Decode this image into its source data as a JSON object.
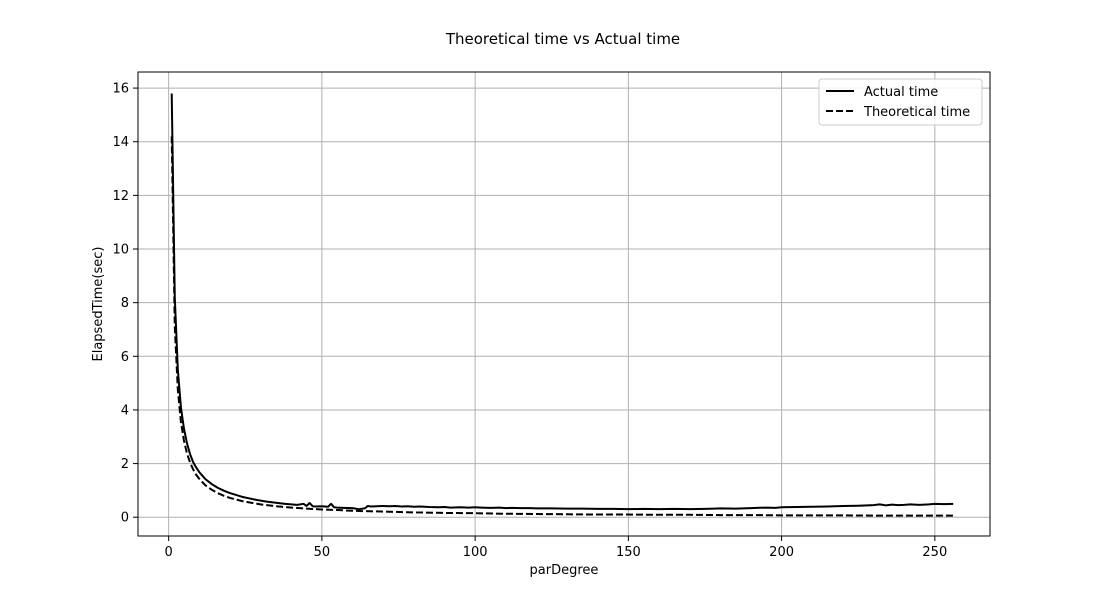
{
  "chart_data": {
    "type": "line",
    "title": "Theoretical time vs Actual time",
    "xlabel": "parDegree",
    "ylabel": "ElapsedTime(sec)",
    "xlim": [
      -10,
      268
    ],
    "ylim": [
      -0.7,
      16.6
    ],
    "xticks": [
      0,
      50,
      100,
      150,
      200,
      250
    ],
    "yticks": [
      0,
      2,
      4,
      6,
      8,
      10,
      12,
      14,
      16
    ],
    "grid": true,
    "legend_position": "top-right",
    "series": [
      {
        "name": "Actual time",
        "style": "solid",
        "color": "#000000",
        "x": [
          1,
          2,
          3,
          4,
          5,
          6,
          7,
          8,
          9,
          10,
          12,
          14,
          16,
          18,
          20,
          22,
          24,
          26,
          28,
          30,
          32,
          35,
          38,
          40,
          42,
          44,
          45,
          46,
          47,
          48,
          50,
          52,
          53,
          54,
          55,
          57,
          60,
          62,
          64,
          65,
          66,
          68,
          70,
          72,
          74,
          76,
          78,
          80,
          82,
          85,
          88,
          90,
          92,
          95,
          98,
          100,
          102,
          105,
          108,
          110,
          112,
          115,
          118,
          120,
          125,
          130,
          135,
          140,
          145,
          150,
          155,
          160,
          165,
          170,
          175,
          178,
          180,
          185,
          190,
          195,
          198,
          200,
          205,
          210,
          215,
          220,
          225,
          230,
          232,
          234,
          236,
          238,
          240,
          242,
          245,
          248,
          250,
          253,
          256
        ],
        "y": [
          15.8,
          8.2,
          5.5,
          4.1,
          3.3,
          2.75,
          2.35,
          2.05,
          1.85,
          1.68,
          1.42,
          1.24,
          1.1,
          0.99,
          0.9,
          0.83,
          0.76,
          0.71,
          0.66,
          0.62,
          0.58,
          0.54,
          0.5,
          0.48,
          0.46,
          0.5,
          0.42,
          0.53,
          0.41,
          0.4,
          0.41,
          0.39,
          0.5,
          0.37,
          0.36,
          0.35,
          0.34,
          0.3,
          0.33,
          0.42,
          0.4,
          0.41,
          0.42,
          0.41,
          0.42,
          0.4,
          0.41,
          0.39,
          0.4,
          0.38,
          0.37,
          0.38,
          0.36,
          0.37,
          0.36,
          0.37,
          0.36,
          0.35,
          0.36,
          0.34,
          0.35,
          0.34,
          0.34,
          0.33,
          0.33,
          0.32,
          0.32,
          0.31,
          0.31,
          0.3,
          0.31,
          0.3,
          0.31,
          0.3,
          0.31,
          0.32,
          0.33,
          0.32,
          0.34,
          0.36,
          0.35,
          0.37,
          0.38,
          0.39,
          0.4,
          0.42,
          0.43,
          0.45,
          0.48,
          0.44,
          0.47,
          0.45,
          0.46,
          0.48,
          0.46,
          0.48,
          0.5,
          0.49,
          0.5
        ]
      },
      {
        "name": "Theoretical time",
        "style": "dashed",
        "color": "#000000",
        "x": [
          1,
          2,
          3,
          4,
          5,
          6,
          7,
          8,
          9,
          10,
          12,
          14,
          16,
          18,
          20,
          22,
          24,
          26,
          28,
          30,
          32,
          35,
          38,
          40,
          45,
          50,
          55,
          60,
          70,
          80,
          90,
          100,
          110,
          120,
          130,
          140,
          150,
          160,
          170,
          180,
          190,
          200,
          210,
          220,
          230,
          240,
          250,
          256
        ],
        "y": [
          14.2,
          7.1,
          4.75,
          3.56,
          2.85,
          2.37,
          2.04,
          1.78,
          1.58,
          1.43,
          1.19,
          1.03,
          0.9,
          0.8,
          0.72,
          0.66,
          0.6,
          0.56,
          0.52,
          0.48,
          0.45,
          0.41,
          0.38,
          0.36,
          0.32,
          0.29,
          0.27,
          0.24,
          0.21,
          0.18,
          0.16,
          0.15,
          0.13,
          0.12,
          0.11,
          0.1,
          0.1,
          0.09,
          0.09,
          0.08,
          0.08,
          0.07,
          0.07,
          0.07,
          0.06,
          0.06,
          0.06,
          0.06
        ]
      }
    ]
  }
}
